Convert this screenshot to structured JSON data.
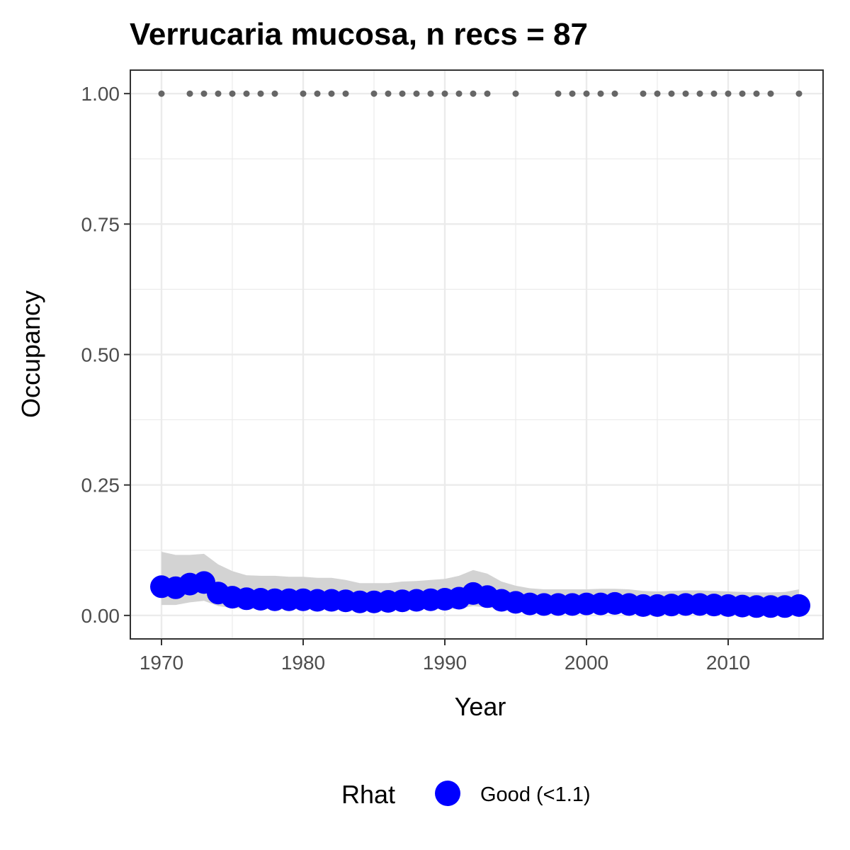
{
  "chart_data": {
    "type": "line",
    "title": "Verrucaria mucosa, n recs = 87",
    "xlabel": "Year",
    "ylabel": "Occupancy",
    "xlim": [
      1967.8,
      1966.8
    ],
    "x_range": [
      1967.8,
      2016.7
    ],
    "ylim": [
      -0.045,
      1.045
    ],
    "x_ticks": [
      1970,
      1980,
      1990,
      2000,
      2010
    ],
    "x_tick_labels": [
      "1970",
      "1980",
      "1990",
      "2000",
      "2010"
    ],
    "y_ticks": [
      0,
      0.25,
      0.5,
      0.75,
      1.0
    ],
    "y_tick_labels": [
      "0.00",
      "0.25",
      "0.50",
      "0.75",
      "1.00"
    ],
    "grid": true,
    "legend": {
      "title": "Rhat",
      "position": "bottom",
      "entries": [
        {
          "label": "Good (<1.1)",
          "color": "#0000ff"
        }
      ]
    },
    "series": [
      {
        "name": "Good (<1.1)",
        "color": "#0000ff",
        "x": [
          1970,
          1971,
          1972,
          1973,
          1974,
          1975,
          1976,
          1977,
          1978,
          1979,
          1980,
          1981,
          1982,
          1983,
          1984,
          1985,
          1986,
          1987,
          1988,
          1989,
          1990,
          1991,
          1992,
          1993,
          1994,
          1995,
          1996,
          1997,
          1998,
          1999,
          2000,
          2001,
          2002,
          2003,
          2004,
          2005,
          2006,
          2007,
          2008,
          2009,
          2010,
          2011,
          2012,
          2013,
          2014,
          2015
        ],
        "y": [
          0.055,
          0.053,
          0.06,
          0.063,
          0.043,
          0.035,
          0.032,
          0.031,
          0.03,
          0.03,
          0.03,
          0.029,
          0.029,
          0.028,
          0.026,
          0.026,
          0.027,
          0.028,
          0.029,
          0.03,
          0.031,
          0.033,
          0.042,
          0.036,
          0.029,
          0.025,
          0.022,
          0.021,
          0.021,
          0.021,
          0.022,
          0.022,
          0.023,
          0.021,
          0.019,
          0.019,
          0.02,
          0.021,
          0.021,
          0.02,
          0.019,
          0.018,
          0.017,
          0.017,
          0.017,
          0.019
        ]
      }
    ],
    "ribbon": {
      "color": "#d3d3d3",
      "x": [
        1970,
        1971,
        1972,
        1973,
        1974,
        1975,
        1976,
        1977,
        1978,
        1979,
        1980,
        1981,
        1982,
        1983,
        1984,
        1985,
        1986,
        1987,
        1988,
        1989,
        1990,
        1991,
        1992,
        1993,
        1994,
        1995,
        1996,
        1997,
        1998,
        1999,
        2000,
        2001,
        2002,
        2003,
        2004,
        2005,
        2006,
        2007,
        2008,
        2009,
        2010,
        2011,
        2012,
        2013,
        2014,
        2015
      ],
      "lower": [
        0.02,
        0.02,
        0.025,
        0.028,
        0.018,
        0.014,
        0.013,
        0.012,
        0.012,
        0.012,
        0.012,
        0.011,
        0.011,
        0.011,
        0.01,
        0.01,
        0.011,
        0.011,
        0.012,
        0.012,
        0.012,
        0.013,
        0.018,
        0.015,
        0.012,
        0.01,
        0.008,
        0.008,
        0.008,
        0.008,
        0.009,
        0.009,
        0.009,
        0.008,
        0.007,
        0.007,
        0.008,
        0.008,
        0.008,
        0.008,
        0.007,
        0.007,
        0.006,
        0.006,
        0.006,
        0.007
      ],
      "upper": [
        0.122,
        0.116,
        0.116,
        0.118,
        0.098,
        0.085,
        0.077,
        0.076,
        0.076,
        0.074,
        0.074,
        0.072,
        0.072,
        0.068,
        0.062,
        0.062,
        0.062,
        0.065,
        0.066,
        0.068,
        0.07,
        0.076,
        0.087,
        0.08,
        0.065,
        0.057,
        0.052,
        0.05,
        0.05,
        0.05,
        0.05,
        0.051,
        0.051,
        0.05,
        0.047,
        0.046,
        0.047,
        0.048,
        0.048,
        0.047,
        0.046,
        0.045,
        0.044,
        0.044,
        0.045,
        0.05
      ]
    },
    "records": {
      "color": "#666666",
      "y": 1.0,
      "x": [
        1970,
        1972,
        1973,
        1974,
        1975,
        1976,
        1977,
        1978,
        1980,
        1981,
        1982,
        1983,
        1985,
        1986,
        1987,
        1988,
        1989,
        1990,
        1991,
        1992,
        1993,
        1995,
        1998,
        1999,
        2000,
        2001,
        2002,
        2004,
        2005,
        2006,
        2007,
        2008,
        2009,
        2010,
        2011,
        2012,
        2013,
        2015
      ]
    }
  }
}
